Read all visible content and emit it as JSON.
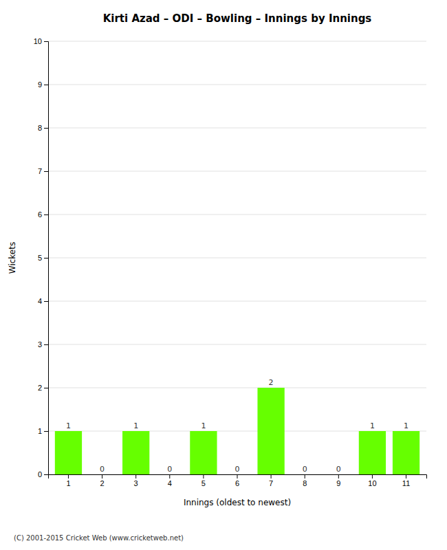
{
  "chart_data": {
    "type": "bar",
    "title": "Kirti Azad – ODI – Bowling – Innings by Innings",
    "x_label": "Innings (oldest to newest)",
    "y_label": "Wickets",
    "categories": [
      "1",
      "2",
      "3",
      "4",
      "5",
      "6",
      "7",
      "8",
      "9",
      "10",
      "11"
    ],
    "values": [
      1,
      0,
      1,
      0,
      1,
      0,
      2,
      0,
      0,
      1,
      1
    ],
    "color": "#66ff00",
    "ylim": [
      0,
      10
    ],
    "yticks": [
      0,
      1,
      2,
      3,
      4,
      5,
      6,
      7,
      8,
      9,
      10
    ],
    "grid": true,
    "data_labels": true,
    "annotations": [
      "(C) 2001-2015 Cricket Web (www.cricketweb.net)"
    ]
  }
}
